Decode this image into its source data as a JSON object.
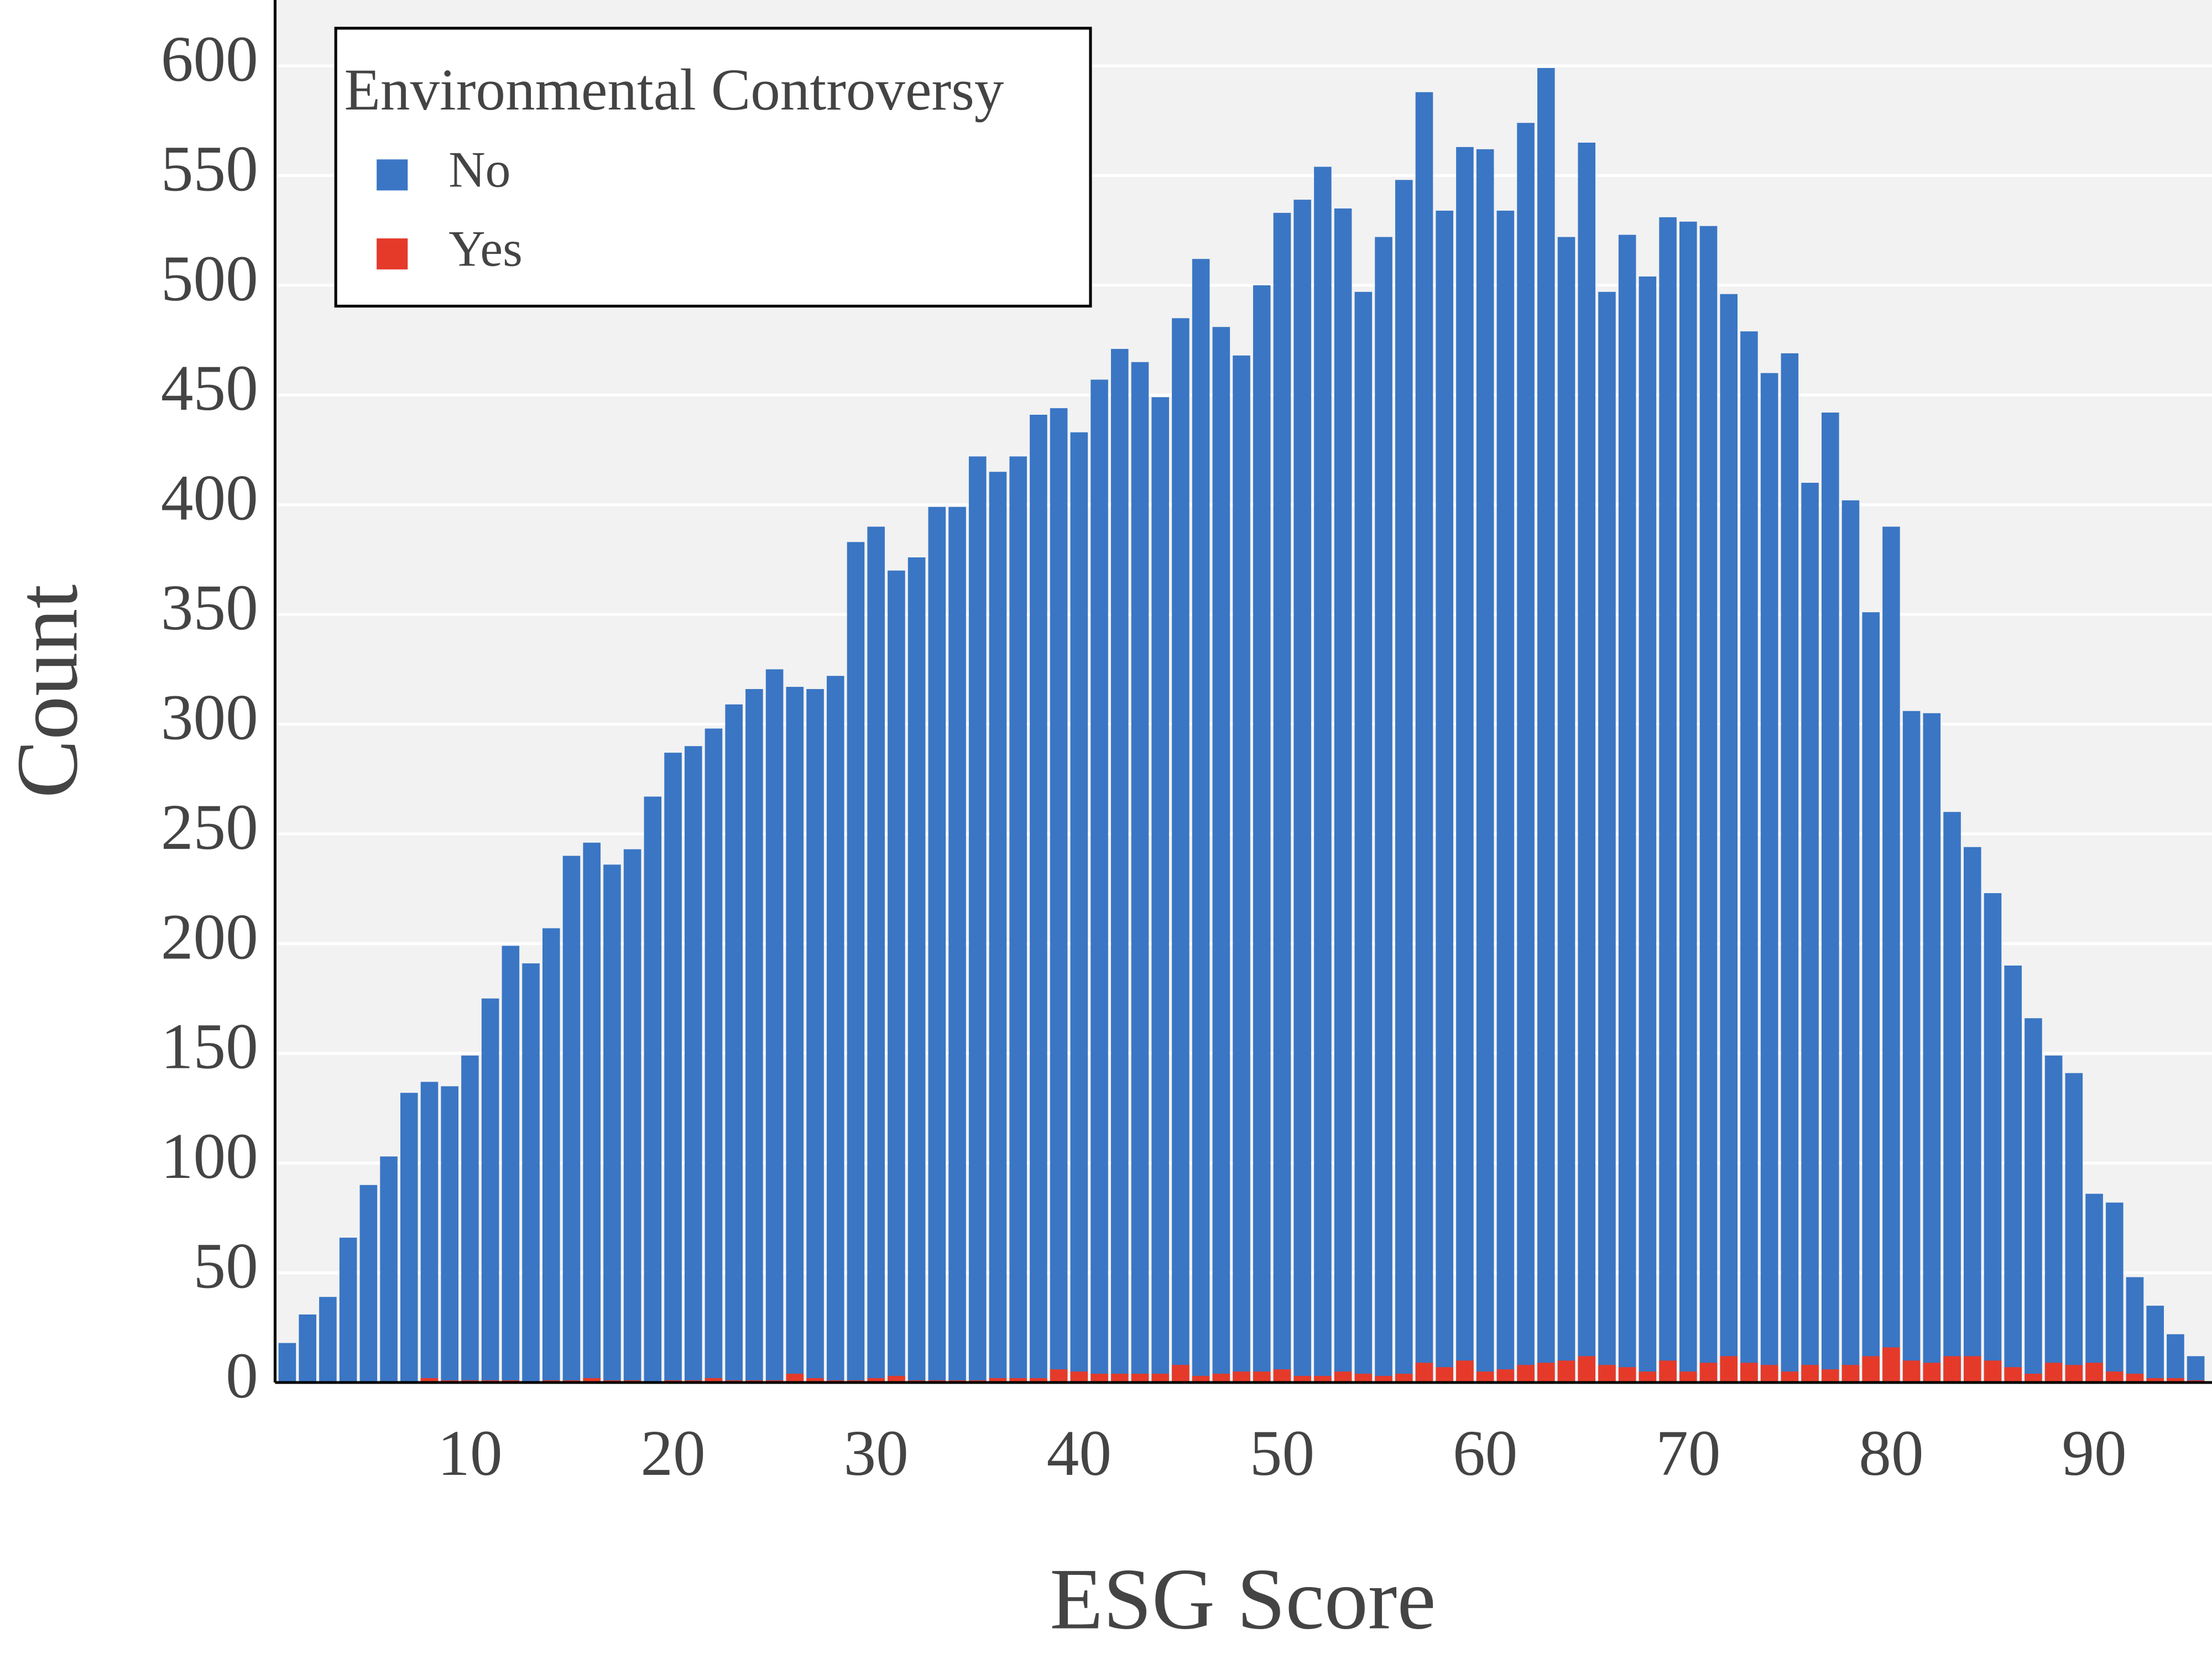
{
  "chart_data": {
    "type": "histogram",
    "x_label": "ESG Score",
    "y_label": "Count",
    "legend_title": "Environmental Controversy",
    "legend_position": "top-left",
    "barmode": "overlay",
    "grid": true,
    "background": "#f2f2f2",
    "xlim": [
      0.4,
      95.8
    ],
    "ylim": [
      0,
      630
    ],
    "xticks": [
      10,
      20,
      30,
      40,
      50,
      60,
      70,
      80,
      90
    ],
    "yticks": [
      0,
      50,
      100,
      150,
      200,
      250,
      300,
      350,
      400,
      450,
      500,
      550,
      600
    ],
    "bins": [
      0.5,
      1.5,
      2.5,
      3.5,
      4.5,
      5.5,
      6.5,
      7.5,
      8.5,
      9.5,
      10.5,
      11.5,
      12.5,
      13.5,
      14.5,
      15.5,
      16.5,
      17.5,
      18.5,
      19.5,
      20.5,
      21.5,
      22.5,
      23.5,
      24.5,
      25.5,
      26.5,
      27.5,
      28.5,
      29.5,
      30.5,
      31.5,
      32.5,
      33.5,
      34.5,
      35.5,
      36.5,
      37.5,
      38.5,
      39.5,
      40.5,
      41.5,
      42.5,
      43.5,
      44.5,
      45.5,
      46.5,
      47.5,
      48.5,
      49.5,
      50.5,
      51.5,
      52.5,
      53.5,
      54.5,
      55.5,
      56.5,
      57.5,
      58.5,
      59.5,
      60.5,
      61.5,
      62.5,
      63.5,
      64.5,
      65.5,
      66.5,
      67.5,
      68.5,
      69.5,
      70.5,
      71.5,
      72.5,
      73.5,
      74.5,
      75.5,
      76.5,
      77.5,
      78.5,
      79.5,
      80.5,
      81.5,
      82.5,
      83.5,
      84.5,
      85.5,
      86.5,
      87.5,
      88.5,
      89.5,
      90.5,
      91.5,
      92.5,
      93.5,
      94.5,
      95.5
    ],
    "series": [
      {
        "name": "No",
        "color": "#3a76c4",
        "values": [
          18,
          31,
          39,
          66,
          90,
          103,
          132,
          137,
          135,
          149,
          175,
          199,
          191,
          207,
          240,
          246,
          236,
          243,
          267,
          287,
          290,
          298,
          309,
          316,
          325,
          317,
          316,
          322,
          383,
          390,
          370,
          376,
          399,
          399,
          422,
          415,
          422,
          441,
          444,
          433,
          457,
          471,
          465,
          449,
          485,
          512,
          481,
          468,
          500,
          533,
          539,
          554,
          535,
          497,
          522,
          548,
          588,
          534,
          563,
          562,
          534,
          574,
          599,
          522,
          565,
          497,
          523,
          504,
          531,
          529,
          527,
          496,
          479,
          460,
          469,
          410,
          442,
          402,
          351,
          390,
          306,
          305,
          260,
          244,
          223,
          190,
          166,
          149,
          141,
          86,
          82,
          48,
          35,
          22,
          12
        ]
      },
      {
        "name": "Yes",
        "color": "#e53a2a",
        "values": [
          0,
          0,
          0,
          0,
          0,
          0,
          0,
          2,
          1,
          1,
          1,
          1,
          0,
          1,
          1,
          2,
          1,
          1,
          0,
          1,
          1,
          2,
          1,
          1,
          1,
          4,
          2,
          1,
          1,
          2,
          3,
          1,
          1,
          1,
          1,
          2,
          2,
          2,
          6,
          5,
          4,
          4,
          4,
          4,
          8,
          3,
          4,
          5,
          5,
          6,
          3,
          3,
          5,
          4,
          3,
          4,
          9,
          7,
          10,
          5,
          6,
          8,
          9,
          10,
          12,
          8,
          7,
          5,
          10,
          5,
          9,
          12,
          9,
          8,
          5,
          8,
          6,
          8,
          12,
          16,
          10,
          9,
          12,
          12,
          10,
          7,
          4,
          9,
          8,
          9,
          5,
          4,
          2,
          2,
          1
        ]
      }
    ]
  }
}
